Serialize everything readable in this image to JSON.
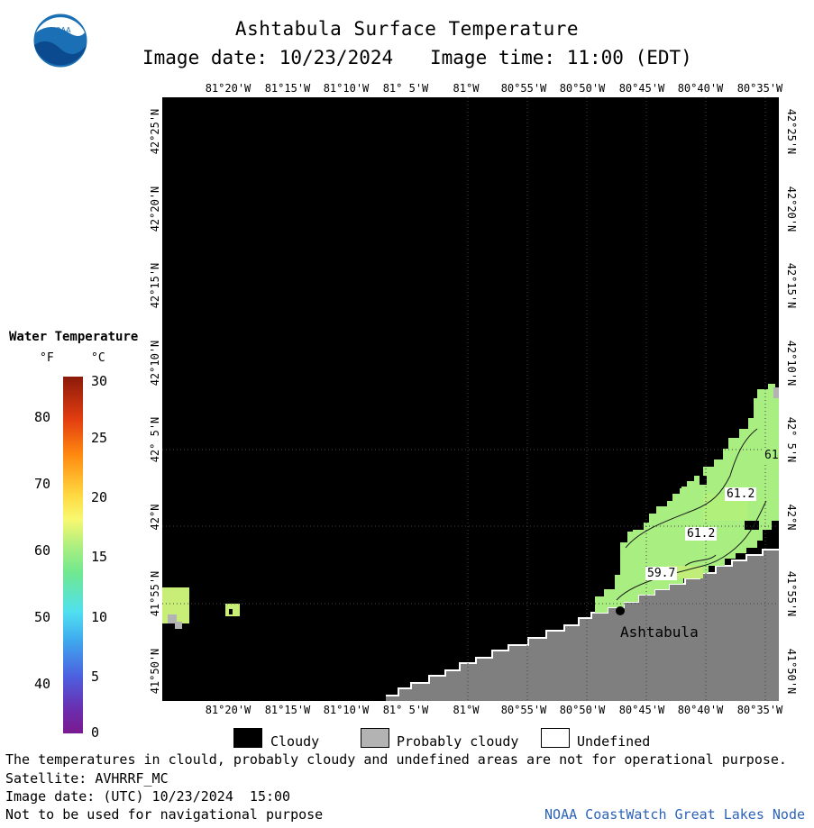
{
  "header": {
    "title": "Ashtabula Surface Temperature",
    "image_date_line": "Image date: 10/23/2024",
    "image_time_line": "Image time: 11:00 (EDT)"
  },
  "logo": {
    "text": "NOAA",
    "color_outer": "#1a6fb5"
  },
  "longitude_labels": [
    "81°20'W",
    "81°15'W",
    "81°10'W",
    "81° 5'W",
    "81°W",
    "80°55'W",
    "80°50'W",
    "80°45'W",
    "80°40'W",
    "80°35'W"
  ],
  "latitude_labels": [
    "42°25'N",
    "42°20'N",
    "42°15'N",
    "42°10'N",
    "42° 5'N",
    "42°N",
    "41°55'N",
    "41°50'N"
  ],
  "map": {
    "place_label": "Ashtabula",
    "contour_labels": [
      "61",
      "61.2",
      "61.2",
      "59.7"
    ],
    "colors": {
      "cloud": "#000000",
      "land": "#7f7f7f",
      "water_warm": "#a4f07a",
      "water_mid": "#c8f070",
      "probably_cloudy": "#b3b3b3"
    }
  },
  "color_scale": {
    "title": "Water Temperature",
    "unit_f": "°F",
    "unit_c": "°C",
    "f_ticks": [
      "80",
      "70",
      "60",
      "50",
      "40"
    ],
    "c_ticks": [
      "30",
      "25",
      "20",
      "15",
      "10",
      "5",
      "0"
    ]
  },
  "legend": {
    "cloudy": "Cloudy",
    "probably_cloudy": "Probably cloudy",
    "undefined": "Undefined"
  },
  "footer": {
    "warning": "The temperatures in clould, probably cloudy and undefined areas are not for operational purpose.",
    "satellite": "Satellite: AVHRRF_MC",
    "utc_date": "Image date: (UTC) 10/23/2024  15:00",
    "nav_warning": "Not to be used for navigational purpose",
    "credit": "NOAA CoastWatch Great Lakes Node"
  }
}
